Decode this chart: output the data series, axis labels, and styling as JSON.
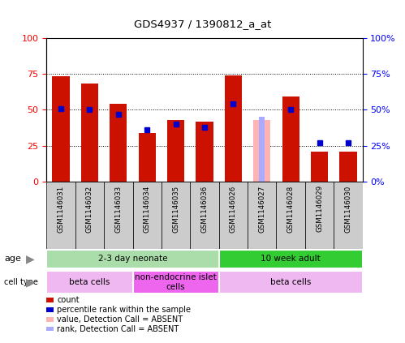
{
  "title": "GDS4937 / 1390812_a_at",
  "samples": [
    "GSM1146031",
    "GSM1146032",
    "GSM1146033",
    "GSM1146034",
    "GSM1146035",
    "GSM1146036",
    "GSM1146026",
    "GSM1146027",
    "GSM1146028",
    "GSM1146029",
    "GSM1146030"
  ],
  "count_values": [
    73,
    68,
    54,
    34,
    43,
    42,
    74,
    0,
    59,
    21,
    21
  ],
  "rank_values": [
    51,
    50,
    47,
    36,
    40,
    38,
    54,
    0,
    50,
    27,
    27
  ],
  "absent_count": [
    0,
    0,
    0,
    0,
    0,
    0,
    0,
    43,
    0,
    0,
    0
  ],
  "absent_rank": [
    0,
    0,
    0,
    0,
    0,
    0,
    0,
    45,
    0,
    0,
    0
  ],
  "ylim": [
    0,
    100
  ],
  "yticks": [
    0,
    25,
    50,
    75,
    100
  ],
  "age_groups": [
    {
      "label": "2-3 day neonate",
      "start": 0,
      "end": 6,
      "color": "#aaddaa"
    },
    {
      "label": "10 week adult",
      "start": 6,
      "end": 11,
      "color": "#33cc33"
    }
  ],
  "cell_type_groups": [
    {
      "label": "beta cells",
      "start": 0,
      "end": 3,
      "color": "#f0b8f0"
    },
    {
      "label": "non-endocrine islet\ncells",
      "start": 3,
      "end": 6,
      "color": "#ee66ee"
    },
    {
      "label": "beta cells",
      "start": 6,
      "end": 11,
      "color": "#f0b8f0"
    }
  ],
  "bar_color_red": "#cc1100",
  "bar_color_pink": "#ffb3b3",
  "rank_color_blue": "#0000cc",
  "rank_color_lightblue": "#aaaaff",
  "legend_items": [
    {
      "color": "#cc1100",
      "label": "count"
    },
    {
      "color": "#0000cc",
      "label": "percentile rank within the sample"
    },
    {
      "color": "#ffb3b3",
      "label": "value, Detection Call = ABSENT"
    },
    {
      "color": "#aaaaff",
      "label": "rank, Detection Call = ABSENT"
    }
  ]
}
